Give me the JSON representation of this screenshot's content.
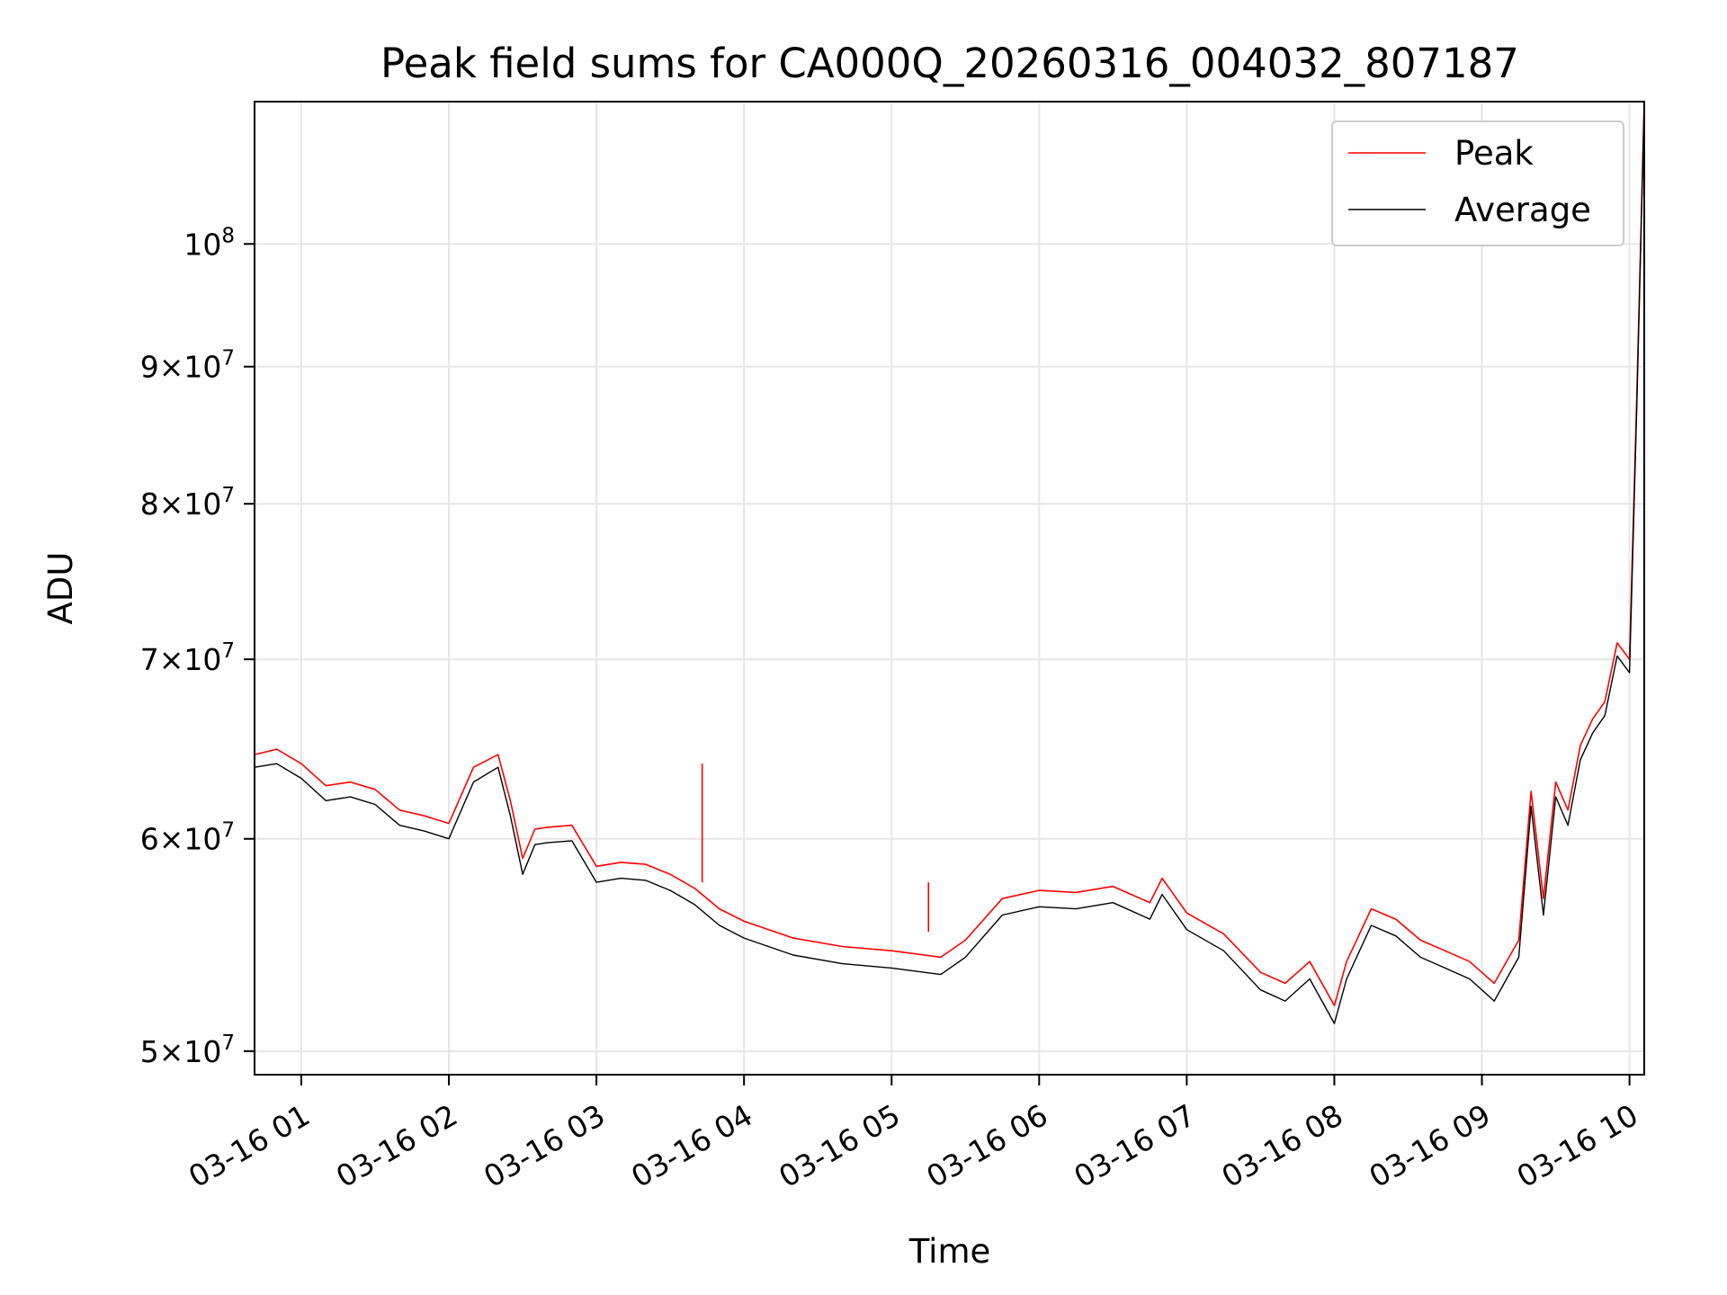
{
  "chart_data": {
    "type": "line",
    "title": "Peak field sums for CA000Q_20260316_004032_807187",
    "xlabel": "Time",
    "ylabel": "ADU",
    "yscale": "log",
    "xlim": [
      "2026-03-16 00:41",
      "2026-03-16 10:06"
    ],
    "ylim": [
      49000000,
      113000000
    ],
    "x_ticks": [
      {
        "value": "2026-03-16 01:00",
        "label": "03-16 01"
      },
      {
        "value": "2026-03-16 02:00",
        "label": "03-16 02"
      },
      {
        "value": "2026-03-16 03:00",
        "label": "03-16 03"
      },
      {
        "value": "2026-03-16 04:00",
        "label": "03-16 04"
      },
      {
        "value": "2026-03-16 05:00",
        "label": "03-16 05"
      },
      {
        "value": "2026-03-16 06:00",
        "label": "03-16 06"
      },
      {
        "value": "2026-03-16 07:00",
        "label": "03-16 07"
      },
      {
        "value": "2026-03-16 08:00",
        "label": "03-16 08"
      },
      {
        "value": "2026-03-16 09:00",
        "label": "03-16 09"
      },
      {
        "value": "2026-03-16 10:00",
        "label": "03-16 10"
      }
    ],
    "y_ticks": [
      {
        "value": 50000000,
        "mant": "5",
        "exp": "7"
      },
      {
        "value": 60000000,
        "mant": "6",
        "exp": "7"
      },
      {
        "value": 70000000,
        "mant": "7",
        "exp": "7"
      },
      {
        "value": 80000000,
        "mant": "8",
        "exp": "7"
      },
      {
        "value": 90000000,
        "mant": "9",
        "exp": "7"
      },
      {
        "value": 100000000,
        "mant": "",
        "exp": "8"
      }
    ],
    "grid": true,
    "legend_position": "top-right",
    "series": [
      {
        "name": "Peak",
        "color": "#ff0000",
        "x": [
          "2026-03-16 00:41",
          "2026-03-16 00:50",
          "2026-03-16 01:00",
          "2026-03-16 01:10",
          "2026-03-16 01:20",
          "2026-03-16 01:30",
          "2026-03-16 01:40",
          "2026-03-16 01:50",
          "2026-03-16 02:00",
          "2026-03-16 02:10",
          "2026-03-16 02:20",
          "2026-03-16 02:25",
          "2026-03-16 02:30",
          "2026-03-16 02:35",
          "2026-03-16 02:40",
          "2026-03-16 02:50",
          "2026-03-16 03:00",
          "2026-03-16 03:10",
          "2026-03-16 03:20",
          "2026-03-16 03:30",
          "2026-03-16 03:40",
          "2026-03-16 03:50",
          "2026-03-16 04:00",
          "2026-03-16 04:20",
          "2026-03-16 04:40",
          "2026-03-16 05:00",
          "2026-03-16 05:20",
          "2026-03-16 05:30",
          "2026-03-16 05:45",
          "2026-03-16 06:00",
          "2026-03-16 06:15",
          "2026-03-16 06:30",
          "2026-03-16 06:45",
          "2026-03-16 06:50",
          "2026-03-16 07:00",
          "2026-03-16 07:15",
          "2026-03-16 07:30",
          "2026-03-16 07:40",
          "2026-03-16 07:50",
          "2026-03-16 08:00",
          "2026-03-16 08:05",
          "2026-03-16 08:15",
          "2026-03-16 08:25",
          "2026-03-16 08:35",
          "2026-03-16 08:45",
          "2026-03-16 08:55",
          "2026-03-16 09:05",
          "2026-03-16 09:15",
          "2026-03-16 09:20",
          "2026-03-16 09:25",
          "2026-03-16 09:30",
          "2026-03-16 09:35",
          "2026-03-16 09:40",
          "2026-03-16 09:45",
          "2026-03-16 09:50",
          "2026-03-16 09:55",
          "2026-03-16 10:00",
          "2026-03-16 10:03",
          "2026-03-16 10:06"
        ],
        "values": [
          64500000,
          64800000,
          64000000,
          62800000,
          63000000,
          62600000,
          61500000,
          61200000,
          60800000,
          63800000,
          64500000,
          62000000,
          59000000,
          60500000,
          60600000,
          60700000,
          58600000,
          58800000,
          58700000,
          58200000,
          57500000,
          56500000,
          55900000,
          55100000,
          54700000,
          54500000,
          54200000,
          55000000,
          57000000,
          57400000,
          57300000,
          57600000,
          56800000,
          58000000,
          56300000,
          55300000,
          53500000,
          53000000,
          54000000,
          52000000,
          54000000,
          56500000,
          56000000,
          55000000,
          54500000,
          54000000,
          53000000,
          55000000,
          62500000,
          57000000,
          63000000,
          61500000,
          65000000,
          66500000,
          67500000,
          71000000,
          70000000,
          88000000,
          113000000
        ]
      },
      {
        "name": "Average",
        "color": "#000000",
        "x": [
          "2026-03-16 00:41",
          "2026-03-16 00:50",
          "2026-03-16 01:00",
          "2026-03-16 01:10",
          "2026-03-16 01:20",
          "2026-03-16 01:30",
          "2026-03-16 01:40",
          "2026-03-16 01:50",
          "2026-03-16 02:00",
          "2026-03-16 02:10",
          "2026-03-16 02:20",
          "2026-03-16 02:25",
          "2026-03-16 02:30",
          "2026-03-16 02:35",
          "2026-03-16 02:40",
          "2026-03-16 02:50",
          "2026-03-16 03:00",
          "2026-03-16 03:10",
          "2026-03-16 03:20",
          "2026-03-16 03:30",
          "2026-03-16 03:40",
          "2026-03-16 03:50",
          "2026-03-16 04:00",
          "2026-03-16 04:20",
          "2026-03-16 04:40",
          "2026-03-16 05:00",
          "2026-03-16 05:20",
          "2026-03-16 05:30",
          "2026-03-16 05:45",
          "2026-03-16 06:00",
          "2026-03-16 06:15",
          "2026-03-16 06:30",
          "2026-03-16 06:45",
          "2026-03-16 06:50",
          "2026-03-16 07:00",
          "2026-03-16 07:15",
          "2026-03-16 07:30",
          "2026-03-16 07:40",
          "2026-03-16 07:50",
          "2026-03-16 08:00",
          "2026-03-16 08:05",
          "2026-03-16 08:15",
          "2026-03-16 08:25",
          "2026-03-16 08:35",
          "2026-03-16 08:45",
          "2026-03-16 08:55",
          "2026-03-16 09:05",
          "2026-03-16 09:15",
          "2026-03-16 09:20",
          "2026-03-16 09:25",
          "2026-03-16 09:30",
          "2026-03-16 09:35",
          "2026-03-16 09:40",
          "2026-03-16 09:45",
          "2026-03-16 09:50",
          "2026-03-16 09:55",
          "2026-03-16 10:00",
          "2026-03-16 10:03",
          "2026-03-16 10:06"
        ],
        "values": [
          63800000,
          64000000,
          63200000,
          62000000,
          62200000,
          61800000,
          60700000,
          60400000,
          60000000,
          63000000,
          63800000,
          61200000,
          58200000,
          59700000,
          59800000,
          59900000,
          57800000,
          58000000,
          57900000,
          57400000,
          56700000,
          55700000,
          55100000,
          54300000,
          53900000,
          53700000,
          53400000,
          54200000,
          56200000,
          56600000,
          56500000,
          56800000,
          56000000,
          57200000,
          55500000,
          54500000,
          52700000,
          52200000,
          53200000,
          51200000,
          53200000,
          55700000,
          55200000,
          54200000,
          53700000,
          53200000,
          52200000,
          54200000,
          61700000,
          56200000,
          62200000,
          60700000,
          64200000,
          65700000,
          66700000,
          70200000,
          69200000,
          87200000,
          113000000
        ]
      }
    ],
    "annotations": {
      "spikes": [
        {
          "series": "Peak",
          "x": "2026-03-16 03:43",
          "value": 64000000
        },
        {
          "series": "Peak",
          "x": "2026-03-16 05:15",
          "value": 55400000
        }
      ]
    }
  }
}
